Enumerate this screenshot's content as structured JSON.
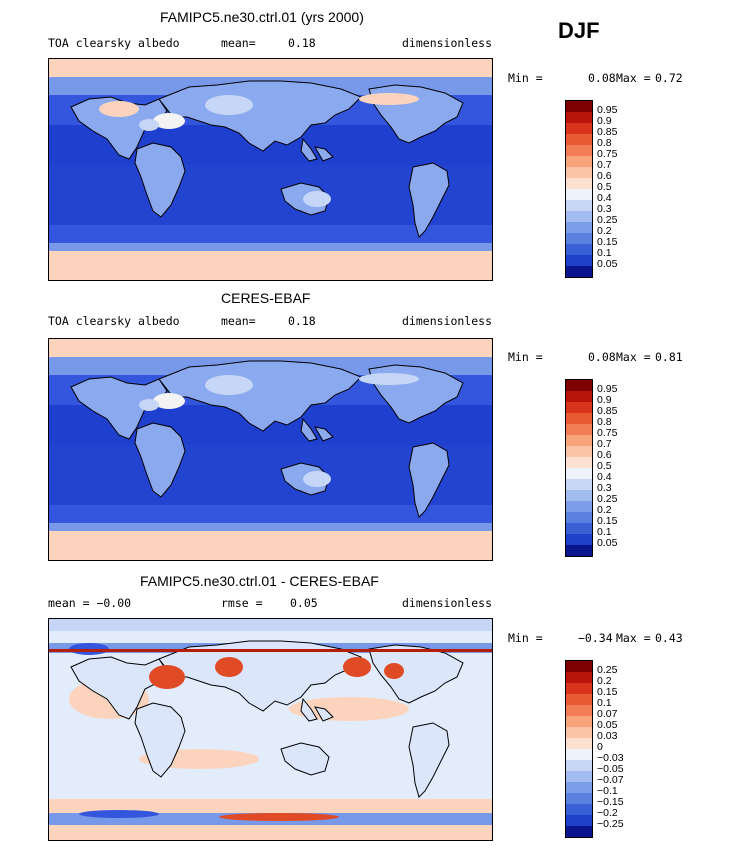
{
  "season": "DJF",
  "palette": {
    "ocean_deep": "#1f3fcf",
    "ocean_mid": "#3356dc",
    "ocean_light": "#7898ea",
    "land": "#8aa9ee",
    "pale_blue": "#c6d6f6",
    "pale_orange": "#fcd4bd",
    "orange": "#f7a47a",
    "red": "#e04a25",
    "dark_red": "#b51f0a",
    "white": "#f3f3f3"
  },
  "panels": [
    {
      "title": "FAMIPC5.ne30.ctrl.01 (yrs 2000)",
      "left": "TOA clearsky albedo",
      "mid_label": "mean=",
      "mid_value": "0.18",
      "right": "dimensionless",
      "min_label": "Min =",
      "min_value": "0.08",
      "max_label": "Max =",
      "max_value": "0.72",
      "colorbar": {
        "labels": [
          "0.95",
          "0.9",
          "0.85",
          "0.8",
          "0.75",
          "0.7",
          "0.6",
          "0.5",
          "0.4",
          "0.3",
          "0.25",
          "0.2",
          "0.15",
          "0.1",
          "0.05"
        ],
        "colors": [
          "#7f0000",
          "#b8140a",
          "#d8331b",
          "#e85a33",
          "#f27d55",
          "#f7a47a",
          "#fbc4a6",
          "#fce0d0",
          "#eef2fb",
          "#c9d7f6",
          "#a3bcf0",
          "#7c9ee9",
          "#5a80e0",
          "#3a60d6",
          "#1e40c8",
          "#0a148c"
        ]
      },
      "map_style": "model"
    },
    {
      "title": "CERES-EBAF",
      "left": "TOA clearsky albedo",
      "mid_label": "mean=",
      "mid_value": "0.18",
      "right": "dimensionless",
      "min_label": "Min =",
      "min_value": "0.08",
      "max_label": "Max =",
      "max_value": "0.81",
      "colorbar": {
        "labels": [
          "0.95",
          "0.9",
          "0.85",
          "0.8",
          "0.75",
          "0.7",
          "0.6",
          "0.5",
          "0.4",
          "0.3",
          "0.25",
          "0.2",
          "0.15",
          "0.1",
          "0.05"
        ],
        "colors": [
          "#7f0000",
          "#b8140a",
          "#d8331b",
          "#e85a33",
          "#f27d55",
          "#f7a47a",
          "#fbc4a6",
          "#fce0d0",
          "#eef2fb",
          "#c9d7f6",
          "#a3bcf0",
          "#7c9ee9",
          "#5a80e0",
          "#3a60d6",
          "#1e40c8",
          "#0a148c"
        ]
      },
      "map_style": "obs"
    },
    {
      "title": "FAMIPC5.ne30.ctrl.01 - CERES-EBAF",
      "left": "mean =   −0.00",
      "mid_label": "rmse =",
      "mid_value": "0.05",
      "right": "dimensionless",
      "min_label": "Min =",
      "min_value": "−0.34",
      "max_label": "Max =",
      "max_value": "0.43",
      "colorbar": {
        "labels": [
          "0.25",
          "0.2",
          "0.15",
          "0.1",
          "0.07",
          "0.05",
          "0.03",
          "0",
          "−0.03",
          "−0.05",
          "−0.07",
          "−0.1",
          "−0.15",
          "−0.2",
          "−0.25"
        ],
        "colors": [
          "#7f0000",
          "#b8140a",
          "#d8331b",
          "#e85a33",
          "#f27d55",
          "#f7a47a",
          "#fbc4a6",
          "#fce0d0",
          "#eef2fb",
          "#c9d7f6",
          "#a3bcf0",
          "#7c9ee9",
          "#5a80e0",
          "#3a60d6",
          "#1e40c8",
          "#0a148c"
        ]
      },
      "map_style": "diff"
    }
  ]
}
